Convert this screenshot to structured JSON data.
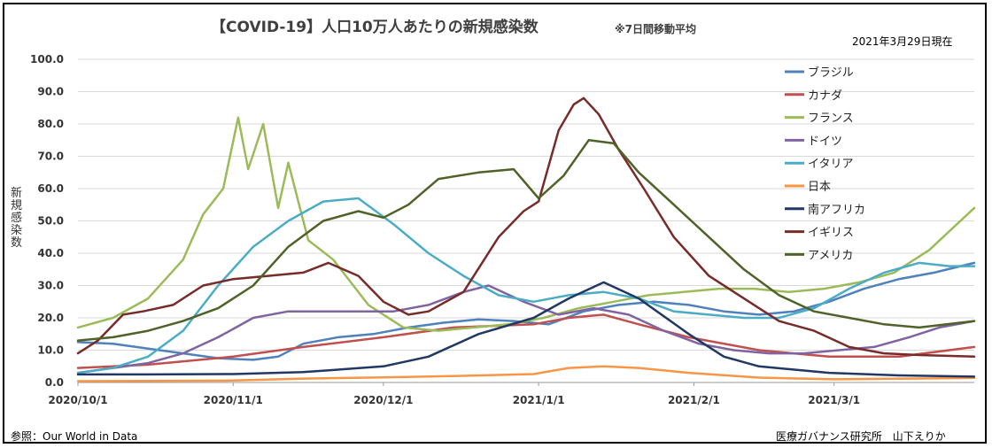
{
  "header": {
    "title": "【COVID-19】人口10万人あたりの新規感染数",
    "subtitle": "※7日間移動平均",
    "as_of": "2021年3月29日現在"
  },
  "footer": {
    "source": "参照：Our World in Data",
    "author": "医療ガバナンス研究所　山下えりか"
  },
  "chart_data": {
    "type": "line",
    "ylabel": "新規感染数",
    "ylim": [
      0,
      100
    ],
    "yticks": [
      "0.0",
      "10.0",
      "20.0",
      "30.0",
      "40.0",
      "50.0",
      "60.0",
      "70.0",
      "80.0",
      "90.0",
      "100.0"
    ],
    "x_range": [
      "2020-10-01",
      "2021-03-29"
    ],
    "xticks": [
      {
        "date": "2020-10-01",
        "label": "2020/10/1"
      },
      {
        "date": "2020-11-01",
        "label": "2020/11/1"
      },
      {
        "date": "2020-12-01",
        "label": "2020/12/1"
      },
      {
        "date": "2021-01-01",
        "label": "2021/1/1"
      },
      {
        "date": "2021-02-01",
        "label": "2021/2/1"
      },
      {
        "date": "2021-03-01",
        "label": "2021/3/1"
      }
    ],
    "grid": true,
    "legend_position": "right",
    "series": [
      {
        "name": "ブラジル",
        "color": "#4f81bd",
        "points": [
          [
            "2020-10-01",
            12.5
          ],
          [
            "2020-10-08",
            12
          ],
          [
            "2020-10-15",
            10.5
          ],
          [
            "2020-10-22",
            9
          ],
          [
            "2020-10-29",
            7.5
          ],
          [
            "2020-11-05",
            7
          ],
          [
            "2020-11-10",
            8
          ],
          [
            "2020-11-15",
            12
          ],
          [
            "2020-11-22",
            14
          ],
          [
            "2020-11-29",
            15
          ],
          [
            "2020-12-06",
            17
          ],
          [
            "2020-12-13",
            18.5
          ],
          [
            "2020-12-20",
            19.5
          ],
          [
            "2020-12-27",
            19
          ],
          [
            "2021-01-03",
            18
          ],
          [
            "2021-01-10",
            22
          ],
          [
            "2021-01-17",
            24
          ],
          [
            "2021-01-24",
            25
          ],
          [
            "2021-01-31",
            24
          ],
          [
            "2021-02-07",
            22
          ],
          [
            "2021-02-14",
            21
          ],
          [
            "2021-02-21",
            22
          ],
          [
            "2021-02-28",
            25
          ],
          [
            "2021-03-07",
            29
          ],
          [
            "2021-03-14",
            32
          ],
          [
            "2021-03-21",
            34
          ],
          [
            "2021-03-29",
            37
          ]
        ]
      },
      {
        "name": "カナダ",
        "color": "#c0504d",
        "points": [
          [
            "2020-10-01",
            4.5
          ],
          [
            "2020-10-15",
            5.5
          ],
          [
            "2020-11-01",
            8
          ],
          [
            "2020-11-15",
            11
          ],
          [
            "2020-12-01",
            14
          ],
          [
            "2020-12-15",
            17
          ],
          [
            "2020-12-31",
            18
          ],
          [
            "2021-01-07",
            20
          ],
          [
            "2021-01-14",
            21
          ],
          [
            "2021-01-21",
            18
          ],
          [
            "2021-01-31",
            14
          ],
          [
            "2021-02-14",
            10
          ],
          [
            "2021-02-28",
            8
          ],
          [
            "2021-03-14",
            8
          ],
          [
            "2021-03-29",
            11
          ]
        ]
      },
      {
        "name": "フランス",
        "color": "#9bbb59",
        "points": [
          [
            "2020-10-01",
            17
          ],
          [
            "2020-10-08",
            20
          ],
          [
            "2020-10-15",
            26
          ],
          [
            "2020-10-22",
            38
          ],
          [
            "2020-10-26",
            52
          ],
          [
            "2020-10-30",
            60
          ],
          [
            "2020-11-02",
            82
          ],
          [
            "2020-11-04",
            66
          ],
          [
            "2020-11-07",
            80
          ],
          [
            "2020-11-10",
            54
          ],
          [
            "2020-11-12",
            68
          ],
          [
            "2020-11-16",
            44
          ],
          [
            "2020-11-21",
            38
          ],
          [
            "2020-11-28",
            24
          ],
          [
            "2020-12-05",
            17
          ],
          [
            "2020-12-12",
            16
          ],
          [
            "2020-12-19",
            17
          ],
          [
            "2020-12-26",
            18
          ],
          [
            "2021-01-02",
            20
          ],
          [
            "2021-01-09",
            23
          ],
          [
            "2021-01-16",
            25
          ],
          [
            "2021-01-23",
            27
          ],
          [
            "2021-01-30",
            28
          ],
          [
            "2021-02-06",
            29
          ],
          [
            "2021-02-13",
            29
          ],
          [
            "2021-02-20",
            28
          ],
          [
            "2021-02-27",
            29
          ],
          [
            "2021-03-06",
            31
          ],
          [
            "2021-03-13",
            34
          ],
          [
            "2021-03-20",
            41
          ],
          [
            "2021-03-29",
            54
          ]
        ]
      },
      {
        "name": "ドイツ",
        "color": "#8064a2",
        "points": [
          [
            "2020-10-01",
            3
          ],
          [
            "2020-10-15",
            6
          ],
          [
            "2020-10-22",
            9
          ],
          [
            "2020-10-29",
            14
          ],
          [
            "2020-11-05",
            20
          ],
          [
            "2020-11-12",
            22
          ],
          [
            "2020-11-19",
            22
          ],
          [
            "2020-11-26",
            22
          ],
          [
            "2020-12-03",
            22
          ],
          [
            "2020-12-10",
            24
          ],
          [
            "2020-12-17",
            28
          ],
          [
            "2020-12-22",
            30
          ],
          [
            "2020-12-29",
            25
          ],
          [
            "2021-01-05",
            21
          ],
          [
            "2021-01-12",
            23
          ],
          [
            "2021-01-19",
            21
          ],
          [
            "2021-01-26",
            16
          ],
          [
            "2021-02-02",
            12
          ],
          [
            "2021-02-09",
            10
          ],
          [
            "2021-02-16",
            9
          ],
          [
            "2021-02-23",
            9
          ],
          [
            "2021-03-02",
            10
          ],
          [
            "2021-03-09",
            11
          ],
          [
            "2021-03-16",
            14
          ],
          [
            "2021-03-22",
            17
          ],
          [
            "2021-03-29",
            19
          ]
        ]
      },
      {
        "name": "イタリア",
        "color": "#4bacc6",
        "points": [
          [
            "2020-10-01",
            3
          ],
          [
            "2020-10-08",
            4.5
          ],
          [
            "2020-10-15",
            8
          ],
          [
            "2020-10-22",
            16
          ],
          [
            "2020-10-29",
            30
          ],
          [
            "2020-11-05",
            42
          ],
          [
            "2020-11-12",
            50
          ],
          [
            "2020-11-19",
            56
          ],
          [
            "2020-11-26",
            57
          ],
          [
            "2020-12-03",
            49
          ],
          [
            "2020-12-10",
            40
          ],
          [
            "2020-12-17",
            33
          ],
          [
            "2020-12-24",
            27
          ],
          [
            "2020-12-31",
            25
          ],
          [
            "2021-01-07",
            27
          ],
          [
            "2021-01-14",
            28
          ],
          [
            "2021-01-21",
            26
          ],
          [
            "2021-01-28",
            22
          ],
          [
            "2021-02-04",
            21
          ],
          [
            "2021-02-11",
            20
          ],
          [
            "2021-02-18",
            20
          ],
          [
            "2021-02-25",
            23
          ],
          [
            "2021-03-04",
            29
          ],
          [
            "2021-03-11",
            34
          ],
          [
            "2021-03-18",
            37
          ],
          [
            "2021-03-24",
            36
          ],
          [
            "2021-03-29",
            36
          ]
        ]
      },
      {
        "name": "日本",
        "color": "#f79646",
        "points": [
          [
            "2020-10-01",
            0.4
          ],
          [
            "2020-11-01",
            0.6
          ],
          [
            "2020-11-15",
            1.2
          ],
          [
            "2020-12-01",
            1.6
          ],
          [
            "2020-12-15",
            2
          ],
          [
            "2020-12-31",
            2.6
          ],
          [
            "2021-01-07",
            4.5
          ],
          [
            "2021-01-14",
            5
          ],
          [
            "2021-01-21",
            4.5
          ],
          [
            "2021-01-31",
            3
          ],
          [
            "2021-02-14",
            1.5
          ],
          [
            "2021-03-01",
            1
          ],
          [
            "2021-03-29",
            1.4
          ]
        ]
      },
      {
        "name": "南アフリカ",
        "color": "#1f3864",
        "points": [
          [
            "2020-10-01",
            2.5
          ],
          [
            "2020-10-15",
            2.5
          ],
          [
            "2020-11-01",
            2.6
          ],
          [
            "2020-11-15",
            3.2
          ],
          [
            "2020-12-01",
            5
          ],
          [
            "2020-12-10",
            8
          ],
          [
            "2020-12-20",
            15
          ],
          [
            "2020-12-31",
            20
          ],
          [
            "2021-01-07",
            26
          ],
          [
            "2021-01-14",
            31
          ],
          [
            "2021-01-21",
            26
          ],
          [
            "2021-01-31",
            15
          ],
          [
            "2021-02-07",
            8
          ],
          [
            "2021-02-14",
            5
          ],
          [
            "2021-02-28",
            3
          ],
          [
            "2021-03-14",
            2.2
          ],
          [
            "2021-03-29",
            1.8
          ]
        ]
      },
      {
        "name": "イギリス",
        "color": "#772c2a",
        "points": [
          [
            "2020-10-01",
            9
          ],
          [
            "2020-10-05",
            13
          ],
          [
            "2020-10-10",
            21
          ],
          [
            "2020-10-14",
            22
          ],
          [
            "2020-10-20",
            24
          ],
          [
            "2020-10-26",
            30
          ],
          [
            "2020-11-01",
            32
          ],
          [
            "2020-11-08",
            33
          ],
          [
            "2020-11-15",
            34
          ],
          [
            "2020-11-20",
            37
          ],
          [
            "2020-11-26",
            33
          ],
          [
            "2020-12-01",
            25
          ],
          [
            "2020-12-06",
            21
          ],
          [
            "2020-12-10",
            22
          ],
          [
            "2020-12-17",
            28
          ],
          [
            "2020-12-24",
            45
          ],
          [
            "2020-12-29",
            53
          ],
          [
            "2021-01-01",
            56
          ],
          [
            "2021-01-05",
            78
          ],
          [
            "2021-01-08",
            86
          ],
          [
            "2021-01-10",
            88
          ],
          [
            "2021-01-13",
            83
          ],
          [
            "2021-01-17",
            72
          ],
          [
            "2021-01-22",
            60
          ],
          [
            "2021-01-28",
            45
          ],
          [
            "2021-02-04",
            33
          ],
          [
            "2021-02-11",
            26
          ],
          [
            "2021-02-18",
            19
          ],
          [
            "2021-02-25",
            16
          ],
          [
            "2021-03-04",
            11
          ],
          [
            "2021-03-11",
            9
          ],
          [
            "2021-03-18",
            8.5
          ],
          [
            "2021-03-29",
            8
          ]
        ]
      },
      {
        "name": "アメリカ",
        "color": "#4f6228",
        "points": [
          [
            "2020-10-01",
            13
          ],
          [
            "2020-10-08",
            14
          ],
          [
            "2020-10-15",
            16
          ],
          [
            "2020-10-22",
            19
          ],
          [
            "2020-10-29",
            23
          ],
          [
            "2020-11-05",
            30
          ],
          [
            "2020-11-12",
            42
          ],
          [
            "2020-11-19",
            50
          ],
          [
            "2020-11-26",
            53
          ],
          [
            "2020-12-01",
            51
          ],
          [
            "2020-12-06",
            55
          ],
          [
            "2020-12-12",
            63
          ],
          [
            "2020-12-20",
            65
          ],
          [
            "2020-12-27",
            66
          ],
          [
            "2021-01-01",
            57
          ],
          [
            "2021-01-06",
            64
          ],
          [
            "2021-01-11",
            75
          ],
          [
            "2021-01-16",
            74
          ],
          [
            "2021-01-21",
            65
          ],
          [
            "2021-01-28",
            55
          ],
          [
            "2021-02-04",
            45
          ],
          [
            "2021-02-11",
            35
          ],
          [
            "2021-02-18",
            27
          ],
          [
            "2021-02-25",
            22
          ],
          [
            "2021-03-04",
            20
          ],
          [
            "2021-03-11",
            18
          ],
          [
            "2021-03-18",
            17
          ],
          [
            "2021-03-29",
            19
          ]
        ]
      }
    ]
  }
}
